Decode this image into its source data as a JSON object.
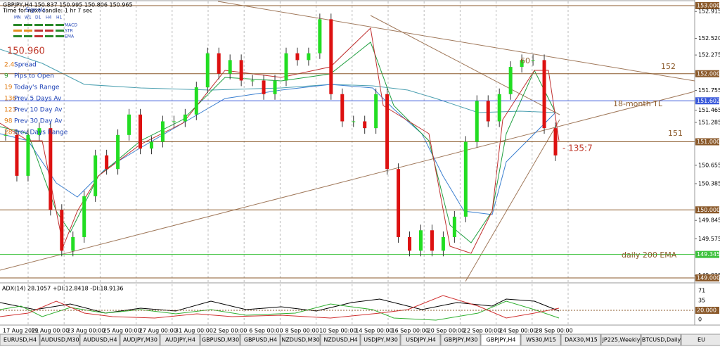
{
  "header": {
    "symbol_line": "GBPJPY,H4 150.837 150.995 150.806 150.965",
    "timer_line": "Time for next candle: 1 hr 7 sec"
  },
  "signals": {
    "title": "Signals",
    "timeframes": [
      "MN",
      "W1",
      "D1",
      "H4",
      "H1"
    ],
    "rows": [
      "MACD",
      "STR",
      "EMA"
    ]
  },
  "stats": {
    "price": "150.960",
    "rows": [
      {
        "value": "2.4",
        "label": "Spread"
      },
      {
        "value": "9",
        "label": "Pips to Open"
      },
      {
        "value": "19",
        "label": "Today's Range"
      },
      {
        "value": "136",
        "label": "Prev 5 Days Av"
      },
      {
        "value": "123",
        "label": "Prev 10 Day Av"
      },
      {
        "value": "98",
        "label": "Prev 30 Day Av"
      },
      {
        "value": "283",
        "label": "Prev Days Range"
      }
    ]
  },
  "annotations": {
    "rsi": "60",
    "level_152": "152",
    "trendline": "18-month TL",
    "level_151": "151",
    "arrow_note": "- 135:7",
    "ema": "daily 200 EMA"
  },
  "price_axis": {
    "ylim": [
      149,
      153
    ],
    "ticks": [
      {
        "value": 153,
        "label": "153.000",
        "highlight": "#8b5a2b"
      },
      {
        "value": 152.915,
        "label": "152.915"
      },
      {
        "value": 152.52,
        "label": "152.520"
      },
      {
        "value": 152.275,
        "label": "152.275"
      },
      {
        "value": 152,
        "label": "152.000",
        "highlight": "#8b5a2b"
      },
      {
        "value": 151.755,
        "label": "151.755"
      },
      {
        "value": 151.602,
        "label": "151.602",
        "highlight": "#3b5bdb"
      },
      {
        "value": 151.465,
        "label": "151.465"
      },
      {
        "value": 151.285,
        "label": "151.285"
      },
      {
        "value": 151,
        "label": "151.000",
        "highlight": "#8b5a2b"
      },
      {
        "value": 150.655,
        "label": "150.655"
      },
      {
        "value": 150.385,
        "label": "150.385"
      },
      {
        "value": 150,
        "label": "150.000",
        "highlight": "#8b5a2b"
      },
      {
        "value": 149.845,
        "label": "149.845"
      },
      {
        "value": 149.575,
        "label": "149.575"
      },
      {
        "value": 149.345,
        "label": "149.345",
        "highlight": "#3cc13c"
      },
      {
        "value": 149.035,
        "label": "149.035"
      },
      {
        "value": 149,
        "label": "149.000",
        "highlight": "#8b5a2b"
      }
    ]
  },
  "closes": [
    151.1,
    150.5,
    151.1,
    151.2,
    150.0,
    149.4,
    149.6,
    150.2,
    150.8,
    150.6,
    151.1,
    151.4,
    150.9,
    151.0,
    151.3,
    151.3,
    151.4,
    151.8,
    152.3,
    152.0,
    152.2,
    151.9,
    151.9,
    151.7,
    151.9,
    152.3,
    152.2,
    152.3,
    152.8,
    151.7,
    151.3,
    151.3,
    151.2,
    151.7,
    150.6,
    149.6,
    149.4,
    149.7,
    149.4,
    149.6,
    149.9,
    151.0,
    151.6,
    151.3,
    151.7,
    152.1,
    152.2,
    152.2,
    151.2,
    150.8
  ],
  "indicator": {
    "label": "ADX(14) 28.1057 +DI:12.8418 -DI:18.9136",
    "ticks": [
      "71",
      "35",
      "20.000",
      "0"
    ]
  },
  "dates": [
    "17 Aug 2021",
    "19 Aug 00:00",
    "23 Aug 00:00",
    "25 Aug 00:00",
    "27 Aug 00:00",
    "31 Aug 00:00",
    "2 Sep 00:00",
    "6 Sep 00:00",
    "8 Sep 00:00",
    "10 Sep 00:00",
    "14 Sep 00:00",
    "16 Sep 00:00",
    "20 Sep 00:00",
    "22 Sep 00:00",
    "24 Sep 00:00",
    "28 Sep 00:00"
  ],
  "tabs": {
    "items": [
      "EURUSD,H4",
      "AUDUSD,M30",
      "AUDUSD,H4",
      "AUDJPY,M30",
      "AUDJPY,H4",
      "GBPUSD,M30",
      "GBPUSD,H4",
      "NZDUSD,M30",
      "NZDUSD,H4",
      "USDJPY,M30",
      "USDJPY,H4",
      "GBPJPY,M30",
      "GBPJPY,H4",
      "WS30,M15",
      "DAX30,M15",
      "JP225,Weekly",
      "BTCUSD,Daily",
      "EU"
    ],
    "active": 12
  }
}
